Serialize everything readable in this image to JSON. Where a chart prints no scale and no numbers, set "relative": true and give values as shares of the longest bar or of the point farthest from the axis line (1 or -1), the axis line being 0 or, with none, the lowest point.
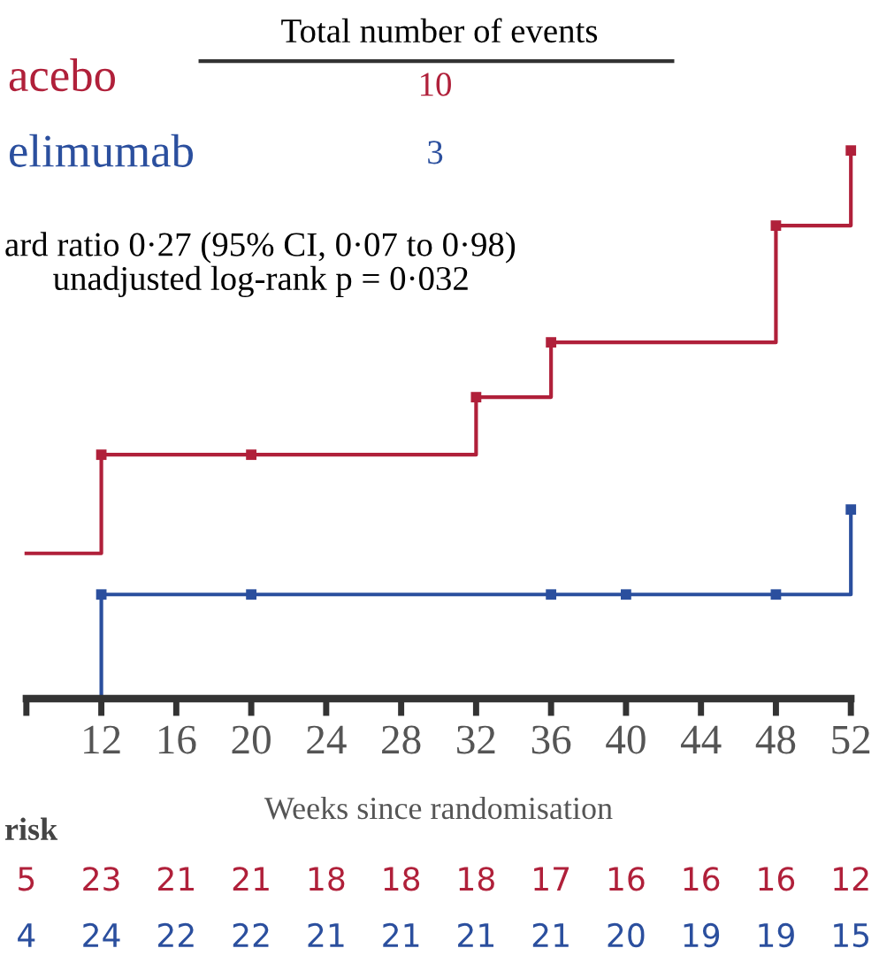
{
  "chart_data": {
    "type": "step",
    "relative": true,
    "xlabel": "Weeks since randomisation",
    "xlim": [
      8,
      52
    ],
    "xticks": [
      {
        "value": 8,
        "label": null
      },
      12,
      16,
      20,
      24,
      28,
      32,
      36,
      40,
      44,
      48,
      52
    ],
    "series": [
      {
        "name": "acebo",
        "color": "#b0203a",
        "x": [
          8,
          12,
          32,
          36,
          48,
          52
        ],
        "values": [
          0.265,
          0.445,
          0.55,
          0.65,
          0.863,
          1.0
        ]
      },
      {
        "name": "elimumab",
        "color": "#2b4f9e",
        "x": [
          8,
          12,
          52
        ],
        "values": [
          0,
          0.19,
          0.345
        ]
      },
      {
        "type": "scatter",
        "marker": "square",
        "color": "#b0203a",
        "x": [
          12,
          20,
          32,
          36,
          48,
          52
        ],
        "values": [
          0.445,
          0.445,
          0.55,
          0.65,
          0.863,
          1.0
        ]
      },
      {
        "type": "scatter",
        "marker": "square",
        "color": "#2b4f9e",
        "x": [
          12,
          20,
          36,
          40,
          48,
          52
        ],
        "values": [
          0.19,
          0.19,
          0.19,
          0.19,
          0.19,
          0.345
        ]
      }
    ],
    "annotations": [
      "Total number of events",
      "10",
      "3",
      "ard ratio 0·27 (95% CI, 0·07 to 0·98)",
      "unadjusted log-rank p = 0·032",
      "risk",
      "5",
      "23",
      "21",
      "21",
      "18",
      "18",
      "18",
      "17",
      "16",
      "16",
      "16",
      "12",
      "4",
      "24",
      "22",
      "22",
      "21",
      "21",
      "21",
      "21",
      "20",
      "19",
      "19",
      "15"
    ],
    "grid": false,
    "legend": false
  }
}
